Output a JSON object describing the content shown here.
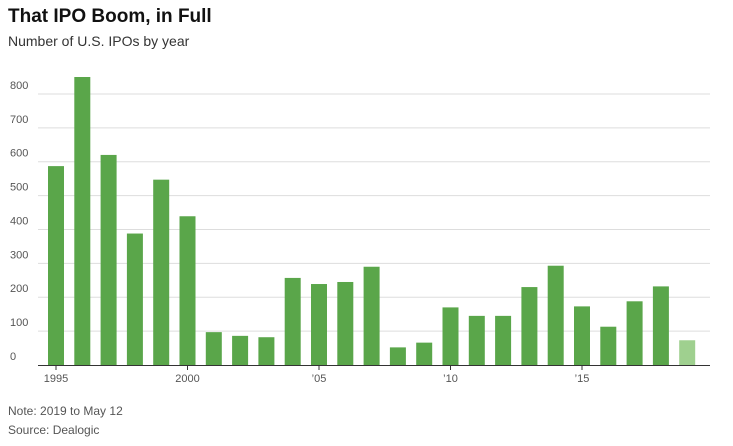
{
  "header": {
    "title": "That IPO Boom, in Full",
    "subtitle": "Number of U.S. IPOs by year"
  },
  "footer": {
    "note": "Note: 2019 to May 12",
    "source": "Source: Dealogic"
  },
  "colors": {
    "bar": "#5aa64a",
    "bar_partial": "#9fd08f",
    "grid": "#dddddd",
    "axis": "#333333"
  },
  "chart_data": {
    "type": "bar",
    "categories": [
      "1995",
      "1996",
      "1997",
      "1998",
      "1999",
      "2000",
      "2001",
      "2002",
      "2003",
      "2004",
      "2005",
      "2006",
      "2007",
      "2008",
      "2009",
      "2010",
      "2011",
      "2012",
      "2013",
      "2014",
      "2015",
      "2016",
      "2017",
      "2018",
      "2019"
    ],
    "values": [
      587,
      850,
      620,
      388,
      547,
      439,
      97,
      86,
      82,
      257,
      239,
      245,
      290,
      52,
      66,
      170,
      145,
      145,
      230,
      293,
      173,
      113,
      188,
      232,
      73
    ],
    "partial_categories": [
      "2019"
    ],
    "ylim": [
      0,
      850
    ],
    "yticks": [
      0,
      100,
      200,
      300,
      400,
      500,
      600,
      700,
      800
    ],
    "xtick_labels": [
      {
        "category": "1995",
        "label": "1995"
      },
      {
        "category": "2000",
        "label": "2000"
      },
      {
        "category": "2005",
        "label": "’05"
      },
      {
        "category": "2010",
        "label": "’10"
      },
      {
        "category": "2015",
        "label": "’15"
      }
    ],
    "grid": true
  }
}
